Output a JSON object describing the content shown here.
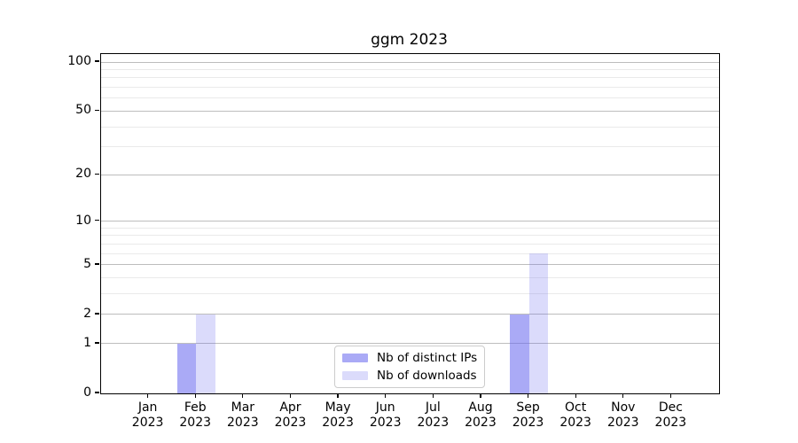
{
  "chart_data": {
    "type": "bar",
    "title": "ggm 2023",
    "categories": [
      "Jan 2023",
      "Feb 2023",
      "Mar 2023",
      "Apr 2023",
      "May 2023",
      "Jun 2023",
      "Jul 2023",
      "Aug 2023",
      "Sep 2023",
      "Oct 2023",
      "Nov 2023",
      "Dec 2023"
    ],
    "series": [
      {
        "name": "Nb of distinct IPs",
        "values": [
          0,
          1,
          0,
          0,
          0,
          0,
          0,
          0,
          2,
          0,
          0,
          0
        ],
        "fill": "rgba(106,106,240,0.57)",
        "color_hex": "#aaaaf7"
      },
      {
        "name": "Nb of downloads",
        "values": [
          0,
          2,
          0,
          0,
          0,
          0,
          0,
          0,
          6,
          0,
          0,
          0
        ],
        "fill": "rgba(106,106,240,0.24)",
        "color_hex": "#dcddf8"
      }
    ],
    "xlabel": "",
    "ylabel": "",
    "yscale": "log1p",
    "yticks": [
      0,
      1,
      2,
      5,
      10,
      20,
      50,
      100
    ],
    "minor_yticks": [
      3,
      4,
      6,
      7,
      8,
      9,
      30,
      40,
      60,
      70,
      80,
      90
    ],
    "ylim": [
      0,
      112
    ],
    "grid": "horizontal major+minor",
    "legend_position": "lower center"
  },
  "colors": {
    "background": "#ffffff",
    "axis": "#000000",
    "grid_major": "#bdbdbd",
    "grid_minor": "#eaeaea",
    "legend_border": "#cccccc",
    "text": "#000000"
  }
}
